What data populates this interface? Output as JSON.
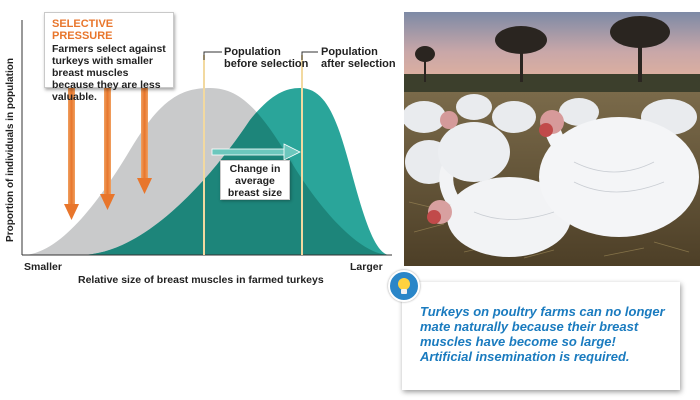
{
  "callout": {
    "title": "SELECTIVE PRESSURE",
    "body": "Farmers select against turkeys with smaller breast muscles because they are less valuable."
  },
  "diagram": {
    "y_axis_label": "Proportion of individuals in population",
    "x_axis_label": "Relative size of breast muscles in farmed turkeys",
    "x_min_label": "Smaller",
    "x_max_label": "Larger",
    "before_label": "Population before selection",
    "after_label": "Population after selection",
    "change_label": "Change in average breast size"
  },
  "note": {
    "text": "Turkeys on poultry farms can no longer mate naturally because their breast muscles have become so large! Artificial insemination is required."
  },
  "colors": {
    "before": "#c9cacb",
    "after": "#2aa59a",
    "overlap": "#1d857a",
    "arrow": "#e8762c",
    "accent": "#1a7bbf"
  },
  "icons": [
    "lightbulb-icon",
    "arrow-right-icon",
    "arrow-down-icon"
  ]
}
